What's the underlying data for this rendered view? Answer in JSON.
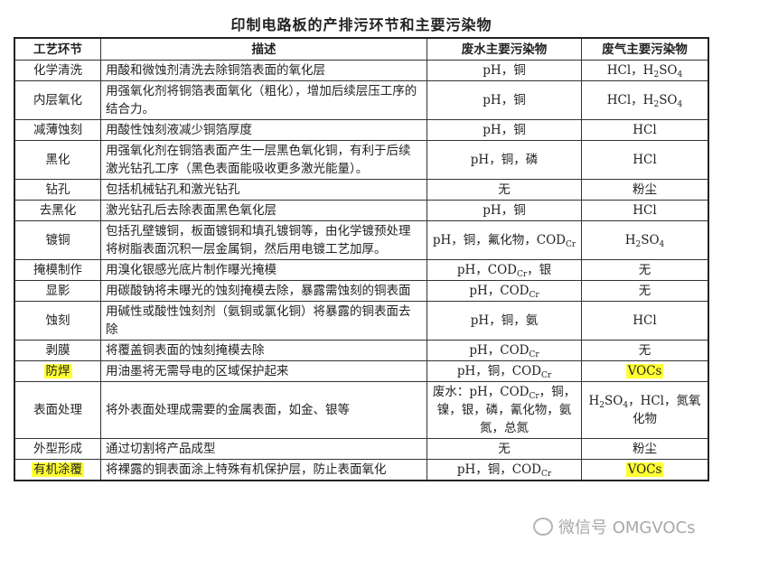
{
  "title": "印制电路板的产排污环节和主要污染物",
  "headers": [
    "工艺环节",
    "描述",
    "废水主要污染物",
    "废气主要污染物"
  ],
  "highlight_color": "#ffff33",
  "rows": [
    {
      "step": "化学清洗",
      "desc": "用酸和微蚀剂清洗去除铜箔表面的氧化层",
      "water": "pH，铜",
      "gas": "HCl，H_{2}SO_{4}"
    },
    {
      "step": "内层氧化",
      "desc": "用强氧化剂将铜箔表面氧化（粗化），增加后续层压工序的结合力。",
      "water": "pH，铜",
      "gas": "HCl，H_{2}SO_{4}"
    },
    {
      "step": "减薄蚀刻",
      "desc": "用酸性蚀刻液减少铜箔厚度",
      "water": "pH，铜",
      "gas": "HCl"
    },
    {
      "step": "黑化",
      "desc": "用强氧化剂在铜箔表面产生一层黑色氧化铜，有利于后续激光钻孔工序（黑色表面能吸收更多激光能量）。",
      "water": "pH，铜，磷",
      "gas": "HCl"
    },
    {
      "step": "钻孔",
      "desc": "包括机械钻孔和激光钻孔",
      "water": "无",
      "gas": "粉尘"
    },
    {
      "step": "去黑化",
      "desc": "激光钻孔后去除表面黑色氧化层",
      "water": "pH，铜",
      "gas": "HCl"
    },
    {
      "step": "镀铜",
      "desc": "包括孔壁镀铜，板面镀铜和填孔镀铜等，由化学镀预处理将树脂表面沉积一层金属铜，然后用电镀工艺加厚。",
      "water": "pH，铜，氟化物，COD_{Cr}",
      "gas": "H_{2}SO_{4}"
    },
    {
      "step": "掩模制作",
      "desc": "用溴化银感光底片制作曝光掩模",
      "water": "pH，COD_{Cr}，银",
      "gas": "无"
    },
    {
      "step": "显影",
      "desc": "用碳酸钠将未曝光的蚀刻掩模去除，暴露需蚀刻的铜表面",
      "water": "pH，COD_{Cr}",
      "gas": "无"
    },
    {
      "step": "蚀刻",
      "desc": "用碱性或酸性蚀刻剂（氨铜或氯化铜）将暴露的铜表面去除",
      "water": "pH，铜，氨",
      "gas": "HCl"
    },
    {
      "step": "剥膜",
      "desc": "将覆盖铜表面的蚀刻掩模去除",
      "water": "pH，COD_{Cr}",
      "gas": "无"
    },
    {
      "step": "防焊",
      "desc": "用油墨将无需导电的区域保护起来",
      "water": "pH，铜，COD_{Cr}",
      "gas": "VOCs",
      "highlight_step": true,
      "highlight_gas": true
    },
    {
      "step": "表面处理",
      "desc": "将外表面处理成需要的金属表面，如金、银等",
      "water": "废水：pH，COD_{Cr}，铜，镍，银，磷，氰化物，氨氮，总氮",
      "gas": "H_{2}SO_{4}，HCl，氮氧化物"
    },
    {
      "step": "外型形成",
      "desc": "通过切割将产品成型",
      "water": "无",
      "gas": "粉尘"
    },
    {
      "step": "有机涂覆",
      "desc": "将裸露的铜表面涂上特殊有机保护层，防止表面氧化",
      "water": "pH，铜，COD_{Cr}",
      "gas": "VOCs",
      "highlight_step": true,
      "highlight_gas": true
    }
  ],
  "watermark": "微信号 OMGVOCs"
}
